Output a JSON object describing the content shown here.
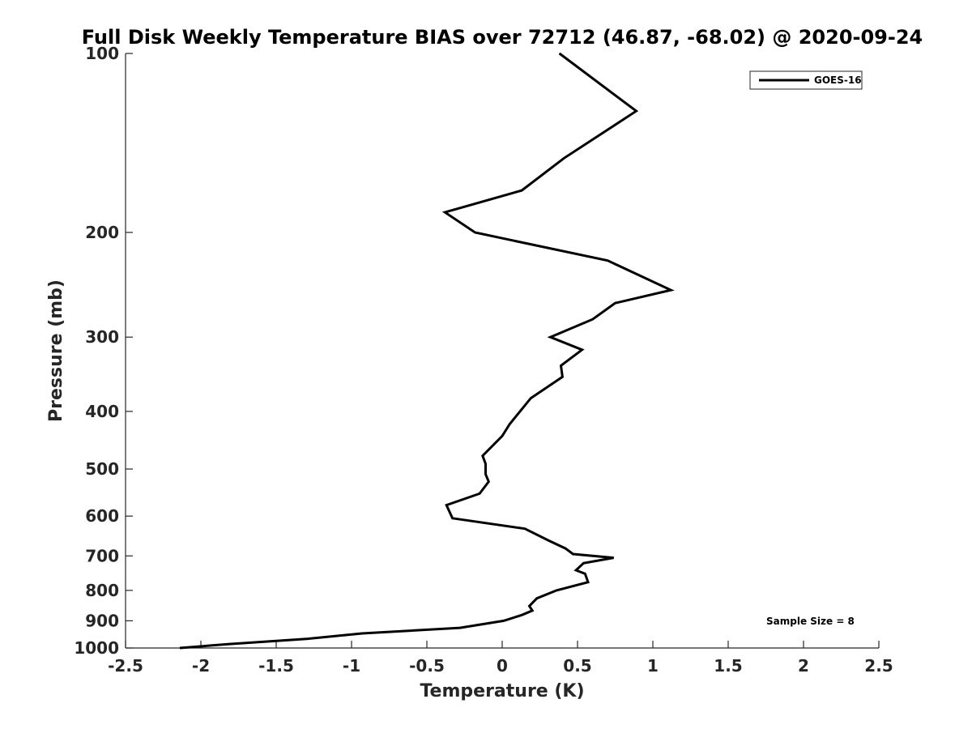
{
  "chart_data": {
    "type": "line",
    "title": "Full Disk Weekly Temperature BIAS over 72712 (46.87, -68.02) @ 2020-09-24",
    "xlabel": "Temperature (K)",
    "ylabel": "Pressure (mb)",
    "xlim": [
      -2.5,
      2.5
    ],
    "ylim": [
      1000,
      100
    ],
    "yscale": "log",
    "y_inverted": true,
    "x_ticks": [
      "-2.5",
      "-2",
      "-1.5",
      "-1",
      "-0.5",
      "0",
      "0.5",
      "1",
      "1.5",
      "2",
      "2.5"
    ],
    "y_ticks": [
      "100",
      "200",
      "300",
      "400",
      "500",
      "600",
      "700",
      "800",
      "900",
      "1000"
    ],
    "grid": false,
    "legend": {
      "position": "top-right",
      "entries": [
        "GOES-16"
      ]
    },
    "annotation": "Sample Size = 8",
    "series": [
      {
        "name": "GOES-16",
        "color": "#000000",
        "points": [
          [
            0.38,
            100
          ],
          [
            0.89,
            125
          ],
          [
            0.41,
            150
          ],
          [
            0.13,
            170
          ],
          [
            -0.38,
            185
          ],
          [
            -0.18,
            200
          ],
          [
            0.7,
            223
          ],
          [
            1.12,
            250
          ],
          [
            0.75,
            263
          ],
          [
            0.6,
            280
          ],
          [
            0.32,
            300
          ],
          [
            0.53,
            315
          ],
          [
            0.39,
            335
          ],
          [
            0.4,
            350
          ],
          [
            0.19,
            380
          ],
          [
            0.05,
            420
          ],
          [
            0.0,
            440
          ],
          [
            -0.13,
            475
          ],
          [
            -0.11,
            490
          ],
          [
            -0.11,
            510
          ],
          [
            -0.09,
            525
          ],
          [
            -0.15,
            550
          ],
          [
            -0.37,
            575
          ],
          [
            -0.33,
            605
          ],
          [
            0.15,
            630
          ],
          [
            0.31,
            660
          ],
          [
            0.42,
            680
          ],
          [
            0.47,
            695
          ],
          [
            0.74,
            705
          ],
          [
            0.54,
            720
          ],
          [
            0.49,
            740
          ],
          [
            0.55,
            750
          ],
          [
            0.57,
            775
          ],
          [
            0.36,
            800
          ],
          [
            0.23,
            825
          ],
          [
            0.18,
            850
          ],
          [
            0.2,
            865
          ],
          [
            0.13,
            880
          ],
          [
            0.01,
            900
          ],
          [
            -0.28,
            925
          ],
          [
            -0.93,
            945
          ],
          [
            -1.29,
            965
          ],
          [
            -1.82,
            985
          ],
          [
            -2.14,
            1000
          ]
        ]
      }
    ]
  }
}
